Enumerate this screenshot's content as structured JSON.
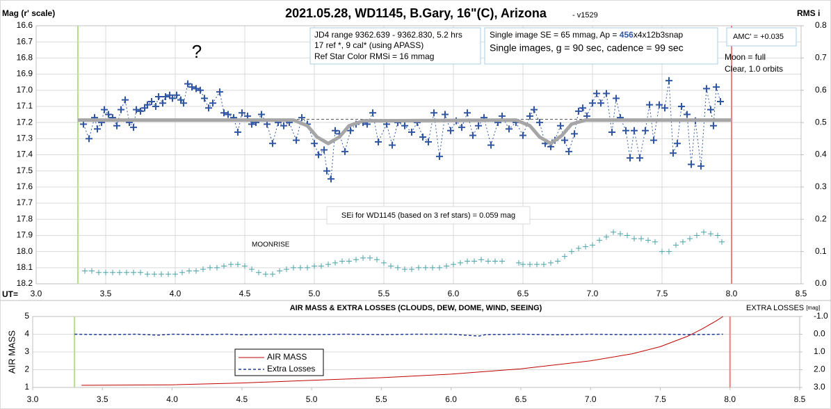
{
  "chart_data": [
    {
      "type": "scatter",
      "title": "2021.05.28, WD1145, B.Gary, 16\"(C), Arizona",
      "version": " - v1529",
      "ylabel": "Mag (r' scale)",
      "y2label": "RMS i",
      "xlabel": "UT=",
      "annotations": {
        "question": "?",
        "jd_box": [
          "JD4 range 9362.639 - 9362.830, 5.2 hrs",
          "17 ref *, 9 cal* (using APASS)",
          "Ref Star Color RMSi = 16 mmag"
        ],
        "se_line": [
          "Single image SE = 65 mmag, Ap = ",
          "456",
          "x4x12b3snap"
        ],
        "cadence": "Single images, g = 90 sec, cadence = 99 sec",
        "amc": "AMC' = +0.035",
        "moon": "Moon = full",
        "clear": "Clear, 1.0 orbits",
        "sei": "SEi for WD1145 (based on 3 ref stars) = 0.059 mag",
        "moonrise": "MOONRISE"
      },
      "xlim": [
        3.0,
        8.5
      ],
      "xticks": [
        {
          "value": 3,
          "label": "3.0"
        },
        3.5,
        {
          "value": 4,
          "label": "4.0"
        },
        4.5,
        {
          "value": 5,
          "label": "5.0"
        },
        5.5,
        {
          "value": 6,
          "label": "6.0"
        },
        6.5,
        {
          "value": 7,
          "label": "7.0"
        },
        7.5,
        {
          "value": 8,
          "label": "8.0"
        },
        8.5
      ],
      "ylim": [
        16.6,
        18.2
      ],
      "y_reversed": true,
      "yticks": [
        16.6,
        16.7,
        16.8,
        16.9,
        {
          "value": 17,
          "label": "17.0"
        },
        17.1,
        17.2,
        17.3,
        17.4,
        17.5,
        17.6,
        17.7,
        17.8,
        17.9,
        {
          "value": 18,
          "label": "18.0"
        },
        18.1,
        18.2
      ],
      "y2lim": [
        0,
        0.8
      ],
      "y2ticks": [
        {
          "value": 0,
          "label": "0.0"
        },
        0.1,
        0.2,
        0.3,
        0.4,
        0.5,
        0.6,
        0.7,
        0.8
      ],
      "grid": true,
      "vgrid": true,
      "vlines": [
        {
          "x": 3.3,
          "color": "#b5dd8a"
        },
        {
          "x": 8.0,
          "color": "#f08080"
        }
      ],
      "series": [
        {
          "color": "#2f55a4",
          "marker": "+",
          "line": "dotted",
          "x": [
            3.34,
            3.38,
            3.42,
            3.44,
            3.47,
            3.49,
            3.52,
            3.55,
            3.58,
            3.61,
            3.64,
            3.67,
            3.7,
            3.72,
            3.75,
            3.78,
            3.8,
            3.83,
            3.86,
            3.88,
            3.91,
            3.93,
            3.96,
            3.98,
            4.01,
            4.04,
            4.06,
            4.09,
            4.12,
            4.15,
            4.18,
            4.21,
            4.24,
            4.27,
            4.32,
            4.35,
            4.38,
            4.42,
            4.45,
            4.48,
            4.52,
            4.55,
            4.58,
            4.62,
            4.66,
            4.7,
            4.74,
            4.78,
            4.82,
            4.87,
            4.91,
            4.95,
            5.0,
            5.03,
            5.07,
            5.09,
            5.12,
            5.15,
            5.18,
            5.22,
            5.26,
            5.3,
            5.35,
            5.38,
            5.42,
            5.46,
            5.52,
            5.56,
            5.6,
            5.65,
            5.7,
            5.74,
            5.78,
            5.82,
            5.86,
            5.9,
            5.94,
            5.98,
            6.02,
            6.06,
            6.1,
            6.14,
            6.18,
            6.22,
            6.27,
            6.32,
            6.35,
            6.4,
            6.45,
            6.5,
            6.55,
            6.58,
            6.62,
            6.66,
            6.7,
            6.73,
            6.77,
            6.8,
            6.83,
            6.87,
            6.9,
            6.93,
            6.96,
            7.0,
            7.03,
            7.06,
            7.1,
            7.14,
            7.17,
            7.2,
            7.24,
            7.27,
            7.3,
            7.34,
            7.38,
            7.41,
            7.44,
            7.48,
            7.52,
            7.55,
            7.58,
            7.61,
            7.64,
            7.68,
            7.71,
            7.74,
            7.78,
            7.82,
            7.85,
            7.87,
            7.89,
            7.92
          ],
          "values": [
            17.21,
            17.3,
            17.17,
            17.24,
            17.2,
            17.12,
            17.15,
            17.17,
            17.22,
            17.12,
            17.06,
            17.2,
            17.23,
            17.12,
            17.13,
            17.11,
            17.09,
            17.07,
            17.1,
            17.04,
            17.08,
            17.04,
            17.03,
            17.05,
            17.03,
            17.06,
            17.08,
            16.96,
            16.98,
            16.99,
            17.0,
            17.05,
            17.11,
            17.08,
            17.01,
            17.14,
            17.15,
            17.17,
            17.26,
            17.14,
            17.16,
            17.21,
            17.2,
            17.15,
            17.21,
            17.33,
            17.2,
            17.22,
            17.2,
            17.31,
            17.17,
            17.21,
            17.33,
            17.4,
            17.37,
            17.5,
            17.55,
            17.25,
            17.27,
            17.38,
            17.25,
            17.21,
            17.2,
            17.21,
            17.14,
            17.32,
            17.21,
            17.34,
            17.2,
            17.22,
            17.26,
            17.2,
            17.29,
            17.32,
            17.14,
            17.41,
            17.15,
            17.25,
            17.19,
            17.23,
            17.14,
            17.28,
            17.22,
            17.17,
            17.34,
            17.2,
            17.16,
            17.24,
            17.2,
            17.28,
            17.16,
            17.12,
            17.2,
            17.33,
            17.35,
            17.31,
            17.22,
            17.31,
            17.38,
            17.27,
            17.13,
            17.11,
            17.16,
            17.08,
            17.02,
            17.08,
            17.02,
            17.26,
            17.05,
            17.17,
            17.25,
            17.42,
            17.25,
            17.42,
            17.25,
            17.09,
            17.31,
            17.09,
            17.11,
            16.94,
            17.39,
            17.33,
            17.1,
            17.15,
            17.46,
            17.19,
            17.47,
            16.99,
            17.12,
            17.22,
            16.98,
            17.07
          ]
        },
        {
          "color": "#595959",
          "line": "dashed",
          "width": 1,
          "x": [
            3.3,
            8.0
          ],
          "values": [
            17.18,
            17.18
          ]
        },
        {
          "color": "#a6a6a6",
          "line": "solid",
          "width": 5,
          "x": [
            3.3,
            4.85,
            4.95,
            5.02,
            5.1,
            5.18,
            5.25,
            5.35,
            6.45,
            6.55,
            6.62,
            6.7,
            6.78,
            6.85,
            6.95,
            8.0
          ],
          "values": [
            17.185,
            17.185,
            17.22,
            17.29,
            17.33,
            17.29,
            17.22,
            17.19,
            17.185,
            17.22,
            17.29,
            17.33,
            17.28,
            17.21,
            17.185,
            17.185
          ]
        },
        {
          "color": "#4aa3a8",
          "marker": "+",
          "axis": "y2",
          "x": [
            3.35,
            3.4,
            3.45,
            3.5,
            3.55,
            3.6,
            3.65,
            3.7,
            3.75,
            3.8,
            3.85,
            3.9,
            3.95,
            4.0,
            4.05,
            4.1,
            4.15,
            4.2,
            4.25,
            4.3,
            4.35,
            4.4,
            4.45,
            4.5,
            4.55,
            4.6,
            4.65,
            4.7,
            4.75,
            4.8,
            4.85,
            4.9,
            4.95,
            5.0,
            5.05,
            5.1,
            5.15,
            5.2,
            5.25,
            5.3,
            5.35,
            5.4,
            5.45,
            5.5,
            5.55,
            5.6,
            5.65,
            5.7,
            5.75,
            5.8,
            5.85,
            5.9,
            5.95,
            6.0,
            6.05,
            6.1,
            6.15,
            6.2,
            6.25,
            6.3,
            6.35,
            6.47,
            6.5,
            6.55,
            6.6,
            6.65,
            6.7,
            6.75,
            6.8,
            6.85,
            6.9,
            6.95,
            7.0,
            7.05,
            7.1,
            7.15,
            7.2,
            7.25,
            7.3,
            7.35,
            7.4,
            7.45,
            7.5,
            7.55,
            7.6,
            7.65,
            7.7,
            7.75,
            7.8,
            7.85,
            7.9,
            7.93
          ],
          "values": [
            0.04,
            0.04,
            0.035,
            0.035,
            0.035,
            0.035,
            0.035,
            0.035,
            0.035,
            0.03,
            0.03,
            0.03,
            0.03,
            0.03,
            0.035,
            0.04,
            0.04,
            0.045,
            0.05,
            0.05,
            0.055,
            0.06,
            0.06,
            0.055,
            0.045,
            0.035,
            0.03,
            0.03,
            0.04,
            0.045,
            0.05,
            0.05,
            0.05,
            0.055,
            0.055,
            0.06,
            0.065,
            0.07,
            0.07,
            0.075,
            0.08,
            0.08,
            0.075,
            0.065,
            0.055,
            0.05,
            0.045,
            0.045,
            0.05,
            0.05,
            0.05,
            0.05,
            0.055,
            0.06,
            0.065,
            0.07,
            0.07,
            0.075,
            0.07,
            0.07,
            0.07,
            0.065,
            0.06,
            0.06,
            0.06,
            0.06,
            0.065,
            0.07,
            0.085,
            0.1,
            0.11,
            0.115,
            0.12,
            0.135,
            0.145,
            0.16,
            0.155,
            0.15,
            0.14,
            0.14,
            0.135,
            0.13,
            0.1,
            0.1,
            0.12,
            0.13,
            0.14,
            0.15,
            0.16,
            0.155,
            0.15,
            0.13
          ]
        }
      ]
    },
    {
      "type": "line",
      "title": "AIR MASS & EXTRA LOSSES (CLOUDS, DEW, DOME, WIND, SEEING)",
      "ylabel": "AIR MASS",
      "y2label": [
        "EXTRA LOSSES ",
        "[mag]"
      ],
      "xlim": [
        3.0,
        8.5
      ],
      "xticks": [
        {
          "value": 3,
          "label": "3.0"
        },
        3.5,
        {
          "value": 4,
          "label": "4.0"
        },
        4.5,
        {
          "value": 5,
          "label": "5.0"
        },
        5.5,
        {
          "value": 6,
          "label": "6.0"
        },
        6.5,
        {
          "value": 7,
          "label": "7.0"
        },
        7.5,
        {
          "value": 8,
          "label": "8.0"
        },
        8.5
      ],
      "ylim": [
        1,
        5
      ],
      "yticks": [
        1,
        2,
        3,
        4,
        5
      ],
      "y2lim": [
        -1,
        3
      ],
      "y2_reversed": true,
      "y2ticks": [
        {
          "value": -1,
          "label": "-1.0"
        },
        {
          "value": 0,
          "label": "0.0"
        },
        {
          "value": 1,
          "label": "1.0"
        },
        {
          "value": 2,
          "label": "2.0"
        },
        {
          "value": 3,
          "label": "3.0"
        }
      ],
      "grid": true,
      "vgrid": false,
      "vlines": [
        {
          "x": 3.3,
          "color": "#b5dd8a"
        },
        {
          "x": 8.0,
          "color": "#f08080"
        }
      ],
      "series": [
        {
          "name": "AIR MASS",
          "color": "#c00000",
          "line": "solid",
          "width": 1,
          "x": [
            3.35,
            4.0,
            4.5,
            5.0,
            5.5,
            6.0,
            6.5,
            7.0,
            7.3,
            7.5,
            7.7,
            7.8,
            7.9,
            7.95
          ],
          "values": [
            1.12,
            1.15,
            1.25,
            1.4,
            1.55,
            1.75,
            2.05,
            2.5,
            2.9,
            3.3,
            3.9,
            4.3,
            4.75,
            5.0
          ]
        },
        {
          "name": "Extra Losses",
          "color": "#1f3a93",
          "line": "dashed",
          "width": 1.5,
          "axis": "y2",
          "x": [
            3.3,
            3.5,
            3.75,
            3.9,
            4.0,
            4.25,
            4.4,
            4.5,
            4.75,
            5.0,
            5.25,
            5.5,
            5.75,
            6.0,
            6.2,
            6.25,
            6.5,
            6.75,
            7.0,
            7.25,
            7.5,
            7.75,
            7.95
          ],
          "values": [
            0.0,
            0.02,
            0.0,
            0.05,
            0.0,
            0.02,
            0.0,
            0.03,
            0.0,
            0.02,
            0.0,
            0.02,
            0.0,
            0.0,
            0.1,
            0.02,
            0.0,
            0.03,
            0.0,
            0.02,
            0.0,
            0.02,
            0.0
          ]
        }
      ]
    }
  ]
}
